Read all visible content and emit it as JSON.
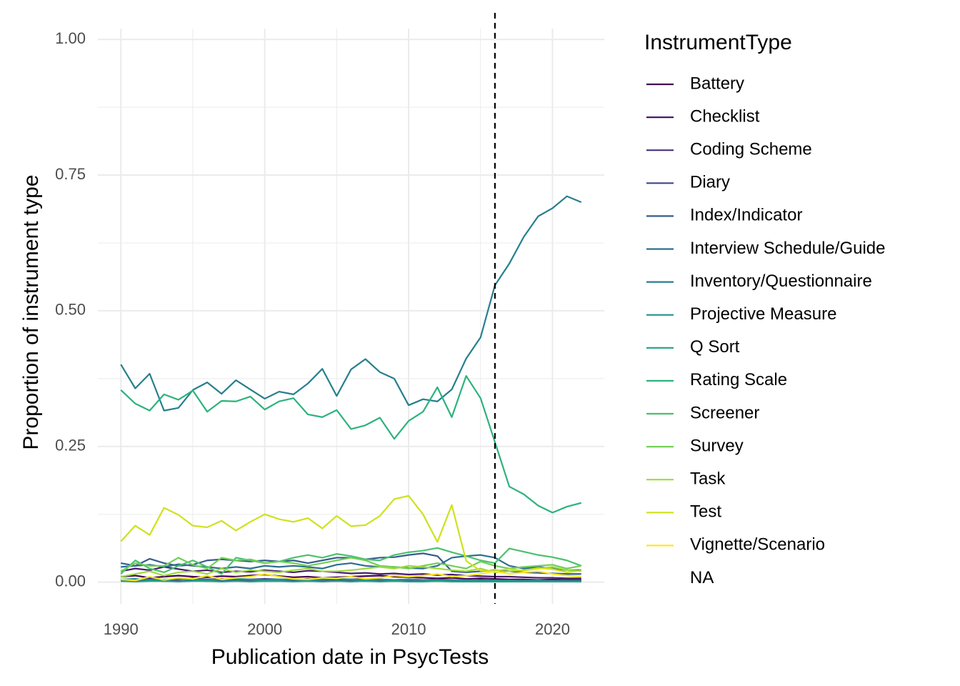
{
  "chart_data": {
    "type": "line",
    "x_label": "Publication date in PsycTests",
    "y_label": "Proportion of instrument type",
    "legend_title": "InstrumentType",
    "legend_position": "right",
    "x": [
      1990,
      1991,
      1992,
      1993,
      1994,
      1995,
      1996,
      1997,
      1998,
      1999,
      2000,
      2001,
      2002,
      2003,
      2004,
      2005,
      2006,
      2007,
      2008,
      2009,
      2010,
      2011,
      2012,
      2013,
      2014,
      2015,
      2016,
      2017,
      2018,
      2019,
      2020,
      2021,
      2022
    ],
    "xlim": [
      1988.4,
      2023.6
    ],
    "xticks": [
      1990,
      2000,
      2010,
      2020
    ],
    "xticks_minor": [
      1995,
      2005,
      2015
    ],
    "ylim": [
      -0.04,
      1.02
    ],
    "yticks": [
      {
        "value": 0,
        "label": "0.00"
      },
      {
        "value": 0.25,
        "label": "0.25"
      },
      {
        "value": 0.5,
        "label": "0.50"
      },
      {
        "value": 0.75,
        "label": "0.75"
      },
      {
        "value": 1,
        "label": "1.00"
      }
    ],
    "yticks_minor": [
      0.125,
      0.375,
      0.625,
      0.875
    ],
    "grid": true,
    "vline": 2016,
    "series": [
      {
        "name": "Battery",
        "color": "#440154",
        "values": [
          0.01,
          0.012,
          0.008,
          0.01,
          0.012,
          0.01,
          0.009,
          0.011,
          0.01,
          0.012,
          0.014,
          0.011,
          0.009,
          0.01,
          0.008,
          0.009,
          0.01,
          0.011,
          0.012,
          0.01,
          0.009,
          0.008,
          0.007,
          0.008,
          0.006,
          0.007,
          0.006,
          0.005,
          0.005,
          0.004,
          0.005,
          0.004,
          0.004
        ]
      },
      {
        "name": "Checklist",
        "color": "#481B6D",
        "values": [
          0.02,
          0.025,
          0.022,
          0.028,
          0.024,
          0.02,
          0.022,
          0.018,
          0.02,
          0.019,
          0.022,
          0.02,
          0.018,
          0.021,
          0.02,
          0.018,
          0.016,
          0.017,
          0.015,
          0.016,
          0.014,
          0.015,
          0.013,
          0.014,
          0.012,
          0.011,
          0.01,
          0.01,
          0.009,
          0.008,
          0.008,
          0.007,
          0.007
        ]
      },
      {
        "name": "Coding Scheme",
        "color": "#46327E",
        "values": [
          0.004,
          0.005,
          0.006,
          0.004,
          0.005,
          0.007,
          0.005,
          0.006,
          0.004,
          0.005,
          0.006,
          0.005,
          0.004,
          0.006,
          0.005,
          0.004,
          0.005,
          0.006,
          0.005,
          0.004,
          0.005,
          0.004,
          0.005,
          0.004,
          0.003,
          0.004,
          0.003,
          0.003,
          0.004,
          0.003,
          0.003,
          0.003,
          0.003
        ]
      },
      {
        "name": "Diary",
        "color": "#3F4788",
        "values": [
          0.002,
          0.002,
          0.003,
          0.002,
          0.002,
          0.003,
          0.002,
          0.002,
          0.003,
          0.002,
          0.002,
          0.002,
          0.003,
          0.002,
          0.002,
          0.002,
          0.003,
          0.002,
          0.002,
          0.002,
          0.002,
          0.003,
          0.002,
          0.002,
          0.002,
          0.002,
          0.002,
          0.001,
          0.002,
          0.001,
          0.001,
          0.001,
          0.001
        ]
      },
      {
        "name": "Index/Indicator",
        "color": "#365C8D",
        "values": [
          0.035,
          0.03,
          0.043,
          0.035,
          0.03,
          0.032,
          0.04,
          0.042,
          0.04,
          0.038,
          0.04,
          0.038,
          0.04,
          0.035,
          0.04,
          0.045,
          0.045,
          0.042,
          0.045,
          0.046,
          0.05,
          0.053,
          0.048,
          0.02,
          0.018,
          0.02,
          0.022,
          0.02,
          0.018,
          0.017,
          0.016,
          0.015,
          0.015
        ]
      },
      {
        "name": "Interview Schedule/Guide",
        "color": "#2E6E8E",
        "values": [
          0.028,
          0.03,
          0.032,
          0.028,
          0.033,
          0.03,
          0.028,
          0.025,
          0.028,
          0.025,
          0.03,
          0.028,
          0.03,
          0.028,
          0.025,
          0.032,
          0.035,
          0.03,
          0.028,
          0.028,
          0.026,
          0.025,
          0.03,
          0.045,
          0.048,
          0.05,
          0.045,
          0.03,
          0.025,
          0.028,
          0.025,
          0.022,
          0.022
        ]
      },
      {
        "name": "Inventory/Questionnaire",
        "color": "#277F8E",
        "values": [
          0.401,
          0.357,
          0.384,
          0.316,
          0.321,
          0.354,
          0.368,
          0.347,
          0.372,
          0.355,
          0.338,
          0.351,
          0.346,
          0.366,
          0.393,
          0.343,
          0.392,
          0.411,
          0.387,
          0.375,
          0.326,
          0.337,
          0.333,
          0.355,
          0.412,
          0.451,
          0.547,
          0.587,
          0.636,
          0.674,
          0.689,
          0.711,
          0.7
        ]
      },
      {
        "name": "Projective Measure",
        "color": "#21908C",
        "values": [
          0.005,
          0.006,
          0.004,
          0.005,
          0.006,
          0.005,
          0.004,
          0.005,
          0.006,
          0.005,
          0.004,
          0.005,
          0.005,
          0.004,
          0.005,
          0.006,
          0.005,
          0.004,
          0.005,
          0.004,
          0.005,
          0.004,
          0.004,
          0.003,
          0.004,
          0.003,
          0.003,
          0.003,
          0.002,
          0.003,
          0.002,
          0.002,
          0.002
        ]
      },
      {
        "name": "Q Sort",
        "color": "#1FA187",
        "values": [
          0.002,
          0.001,
          0.002,
          0.002,
          0.001,
          0.002,
          0.002,
          0.001,
          0.002,
          0.001,
          0.002,
          0.002,
          0.001,
          0.002,
          0.001,
          0.002,
          0.001,
          0.002,
          0.001,
          0.002,
          0.001,
          0.001,
          0.002,
          0.001,
          0.001,
          0.001,
          0.001,
          0.001,
          0.001,
          0.001,
          0.001,
          0.001,
          0.001
        ]
      },
      {
        "name": "Rating Scale",
        "color": "#2DB27D",
        "values": [
          0.354,
          0.329,
          0.316,
          0.346,
          0.336,
          0.353,
          0.314,
          0.334,
          0.333,
          0.342,
          0.318,
          0.333,
          0.339,
          0.309,
          0.304,
          0.317,
          0.282,
          0.289,
          0.303,
          0.264,
          0.297,
          0.314,
          0.359,
          0.304,
          0.38,
          0.339,
          0.258,
          0.176,
          0.162,
          0.141,
          0.128,
          0.139,
          0.146
        ]
      },
      {
        "name": "Screener",
        "color": "#4AC16D",
        "values": [
          0.015,
          0.04,
          0.025,
          0.018,
          0.03,
          0.04,
          0.028,
          0.015,
          0.045,
          0.04,
          0.035,
          0.038,
          0.045,
          0.05,
          0.045,
          0.052,
          0.048,
          0.042,
          0.04,
          0.05,
          0.055,
          0.058,
          0.063,
          0.055,
          0.048,
          0.04,
          0.035,
          0.062,
          0.056,
          0.05,
          0.046,
          0.04,
          0.03
        ]
      },
      {
        "name": "Survey",
        "color": "#71CF57",
        "values": [
          0.02,
          0.035,
          0.03,
          0.03,
          0.045,
          0.032,
          0.025,
          0.045,
          0.04,
          0.042,
          0.035,
          0.038,
          0.035,
          0.03,
          0.035,
          0.04,
          0.045,
          0.04,
          0.03,
          0.028,
          0.025,
          0.03,
          0.035,
          0.03,
          0.025,
          0.038,
          0.03,
          0.025,
          0.028,
          0.03,
          0.032,
          0.025,
          0.03
        ]
      },
      {
        "name": "Task",
        "color": "#9FDA3A",
        "values": [
          0.01,
          0.015,
          0.02,
          0.012,
          0.018,
          0.02,
          0.015,
          0.025,
          0.018,
          0.022,
          0.02,
          0.018,
          0.022,
          0.025,
          0.02,
          0.02,
          0.022,
          0.025,
          0.028,
          0.025,
          0.03,
          0.028,
          0.025,
          0.022,
          0.02,
          0.025,
          0.018,
          0.02,
          0.022,
          0.025,
          0.028,
          0.022,
          0.02
        ]
      },
      {
        "name": "Test",
        "color": "#CFE11C",
        "values": [
          0.075,
          0.104,
          0.087,
          0.137,
          0.124,
          0.104,
          0.101,
          0.113,
          0.095,
          0.111,
          0.125,
          0.116,
          0.111,
          0.118,
          0.099,
          0.122,
          0.103,
          0.105,
          0.122,
          0.153,
          0.159,
          0.125,
          0.074,
          0.142,
          0.039,
          0.021,
          0.021,
          0.024,
          0.021,
          0.026,
          0.024,
          0.018,
          0.021
        ]
      },
      {
        "name": "Vignette/Scenario",
        "color": "#FDE725",
        "values": [
          0.005,
          0.003,
          0.01,
          0.004,
          0.008,
          0.006,
          0.012,
          0.005,
          0.008,
          0.01,
          0.015,
          0.01,
          0.006,
          0.005,
          0.008,
          0.007,
          0.01,
          0.006,
          0.008,
          0.012,
          0.01,
          0.012,
          0.015,
          0.01,
          0.012,
          0.015,
          0.02,
          0.015,
          0.018,
          0.02,
          0.015,
          0.012,
          0.01
        ]
      },
      {
        "name": "NA",
        "color": null,
        "values": [
          null,
          null,
          null,
          null,
          null,
          null,
          null,
          null,
          null,
          null,
          null,
          null,
          null,
          null,
          null,
          null,
          null,
          null,
          null,
          null,
          null,
          null,
          null,
          null,
          null,
          null,
          null,
          null,
          null,
          null,
          null,
          null,
          null
        ]
      }
    ]
  }
}
